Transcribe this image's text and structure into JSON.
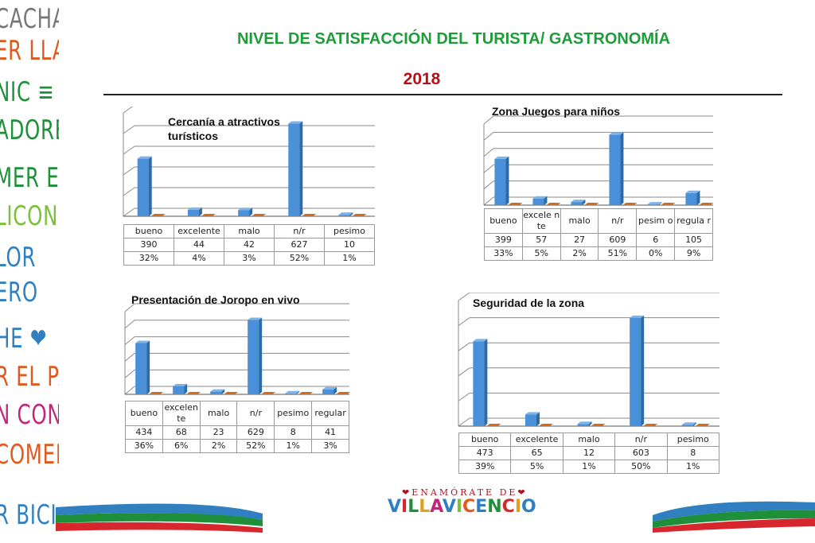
{
  "header": {
    "title": "NIVEL DE SATISFACCIÓN DEL TURISTA/ GASTRONOMÍA",
    "year": "2018"
  },
  "colors": {
    "title": "#1d9d3a",
    "year": "#b0121b",
    "bar": "#4a90d9",
    "bar_small": "#d56b1a"
  },
  "side_words": [
    {
      "text": "CACHA",
      "color": "#777777"
    },
    {
      "text": "ER LLAN",
      "color": "#e0591e"
    },
    {
      "text": "NIC ≡",
      "color": "#1f8f3a"
    },
    {
      "text": "ADORE",
      "color": "#1f8f3a"
    },
    {
      "text": "MER EL F",
      "color": "#1f8f3a"
    },
    {
      "text": "LICONI",
      "color": "#7cbf3a"
    },
    {
      "text": "LOR",
      "color": "#2f7fc1"
    },
    {
      "text": "ERO",
      "color": "#2f7fc1"
    },
    {
      "text": "HE ❤",
      "color": "#2f7fc1"
    },
    {
      "text": "R EL PARÇ",
      "color": "#e0591e"
    },
    {
      "text": "N CON",
      "color": "#c0267a"
    },
    {
      "text": "COMER",
      "color": "#e0591e"
    },
    {
      "text": "R BICIC",
      "color": "#2f7fc1"
    }
  ],
  "chart_data": [
    {
      "type": "bar",
      "title": "Cercanía a atractivos turísticos",
      "categories": [
        "bueno",
        "excelente",
        "malo",
        "n/r",
        "pesimo"
      ],
      "values": [
        390,
        44,
        42,
        627,
        10
      ],
      "percents": [
        "32%",
        "4%",
        "3%",
        "52%",
        "1%"
      ],
      "ylim": [
        0,
        700
      ],
      "grid": true
    },
    {
      "type": "bar",
      "title": "Zona Juegos para niños",
      "categories": [
        "bueno",
        "excele nte",
        "malo",
        "n/r",
        "pesim o",
        "regula r"
      ],
      "values": [
        399,
        57,
        27,
        609,
        6,
        105
      ],
      "percents": [
        "33%",
        "5%",
        "2%",
        "51%",
        "0%",
        "9%"
      ],
      "ylim": [
        0,
        700
      ],
      "grid": true
    },
    {
      "type": "bar",
      "title": "Presentación de Joropo en vivo",
      "categories": [
        "bueno",
        "excelen te",
        "malo",
        "n/r",
        "pesimo",
        "regular"
      ],
      "values": [
        434,
        68,
        23,
        629,
        8,
        41
      ],
      "percents": [
        "36%",
        "6%",
        "2%",
        "52%",
        "1%",
        "3%"
      ],
      "ylim": [
        0,
        700
      ],
      "grid": true
    },
    {
      "type": "bar",
      "title": "Seguridad de la zona",
      "categories": [
        "bueno",
        "excelente",
        "malo",
        "n/r",
        "pesimo"
      ],
      "values": [
        473,
        65,
        12,
        603,
        8
      ],
      "percents": [
        "39%",
        "5%",
        "1%",
        "50%",
        "1%"
      ],
      "ylim": [
        0,
        700
      ],
      "grid": true
    }
  ],
  "logo": {
    "top_text": "❤ENAMÓRATE DE❤",
    "main_text": "VILLAVICENCIO"
  }
}
